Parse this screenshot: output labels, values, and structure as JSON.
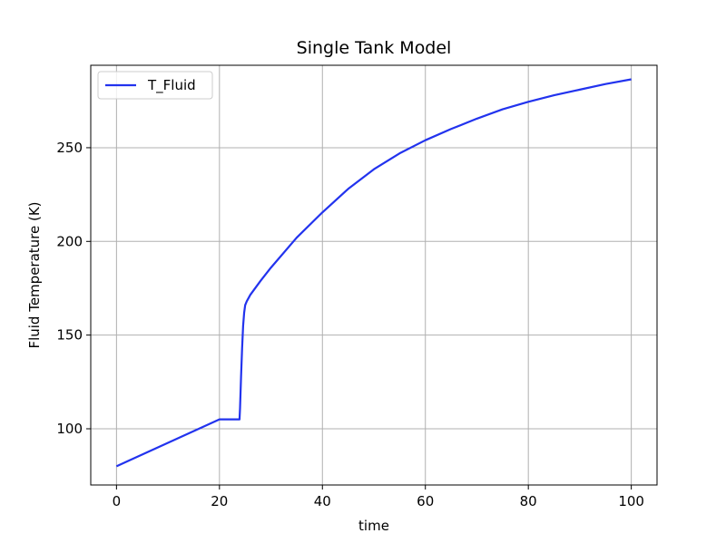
{
  "chart_data": {
    "type": "line",
    "title": "Single Tank Model",
    "xlabel": "time",
    "ylabel": "Fluid Temperature (K)",
    "xlim": [
      -5,
      105
    ],
    "ylim": [
      70,
      294
    ],
    "xticks": [
      0,
      20,
      40,
      60,
      80,
      100
    ],
    "yticks": [
      100,
      150,
      200,
      250
    ],
    "grid": true,
    "legend_position": "top-left",
    "series": [
      {
        "name": "T_Fluid",
        "color": "#2233ee",
        "x": [
          0,
          20,
          23.9,
          24.0,
          24.2,
          24.4,
          24.6,
          24.8,
          25.0,
          25.3,
          26,
          28,
          30,
          35,
          40,
          45,
          50,
          55,
          60,
          65,
          70,
          75,
          80,
          85,
          90,
          95,
          100
        ],
        "y": [
          80,
          105,
          105,
          111,
          128,
          143,
          155,
          162,
          166,
          168,
          171.5,
          179,
          186,
          202,
          215.5,
          228,
          238.5,
          247,
          254,
          260,
          265.5,
          270.5,
          274.5,
          278,
          281,
          284,
          286.5
        ]
      }
    ]
  }
}
